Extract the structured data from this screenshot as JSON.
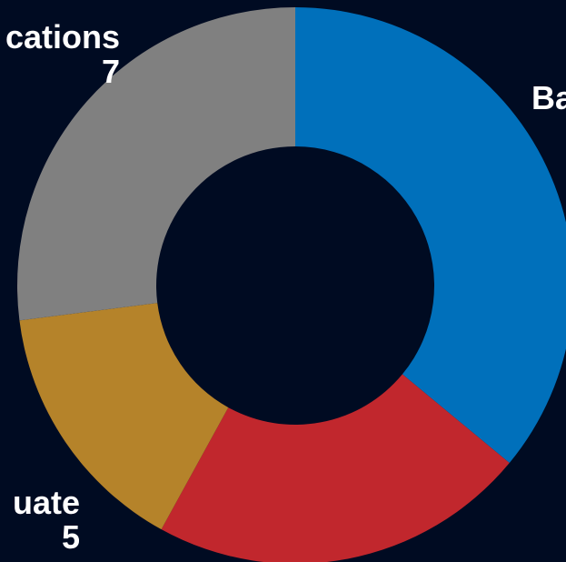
{
  "chart_data": {
    "type": "pie",
    "variant": "donut",
    "title": "",
    "categories": [
      "Ba",
      "",
      "uate",
      "cations"
    ],
    "values": [
      36,
      22,
      15,
      27
    ],
    "colors": [
      "#0070bb",
      "#c1272d",
      "#b5832a",
      "#808080"
    ],
    "visible_labels": {
      "bachelors": {
        "name": "Ba",
        "value": ""
      },
      "graduate": {
        "name": "uate",
        "value": "5"
      },
      "certifications": {
        "name": "cations",
        "value": "7"
      }
    }
  },
  "colors": {
    "background": "#000b22",
    "label_text": "#ffffff"
  }
}
